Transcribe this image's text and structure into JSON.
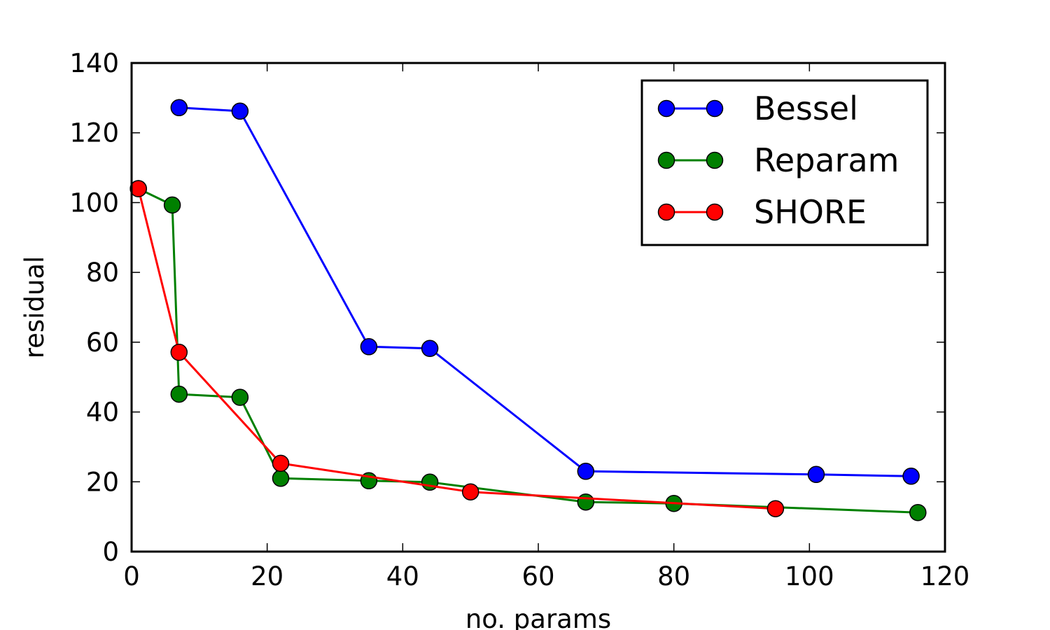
{
  "chart_data": {
    "type": "line",
    "title": "",
    "xlabel": "no. params",
    "ylabel": "residual",
    "xlim": [
      0,
      120
    ],
    "ylim": [
      0,
      140
    ],
    "xticks": [
      0,
      20,
      40,
      60,
      80,
      100,
      120
    ],
    "yticks": [
      0,
      20,
      40,
      60,
      80,
      100,
      120,
      140
    ],
    "grid": false,
    "legend_position": "top-right",
    "series": [
      {
        "name": "Bessel",
        "color": "#0000ff",
        "x": [
          7,
          16,
          35,
          44,
          67,
          101,
          115
        ],
        "y": [
          127.2,
          126.2,
          58.7,
          58.2,
          23.0,
          22.1,
          21.6
        ]
      },
      {
        "name": "Reparam",
        "color": "#008000",
        "x": [
          1,
          6,
          7,
          16,
          22,
          35,
          44,
          67,
          80,
          116
        ],
        "y": [
          104.0,
          99.3,
          45.1,
          44.2,
          21.0,
          20.3,
          19.9,
          14.2,
          13.8,
          11.2
        ]
      },
      {
        "name": "SHORE",
        "color": "#ff0000",
        "x": [
          1,
          7,
          22,
          50,
          95
        ],
        "y": [
          104.0,
          57.1,
          25.3,
          17.1,
          12.3
        ]
      }
    ]
  }
}
